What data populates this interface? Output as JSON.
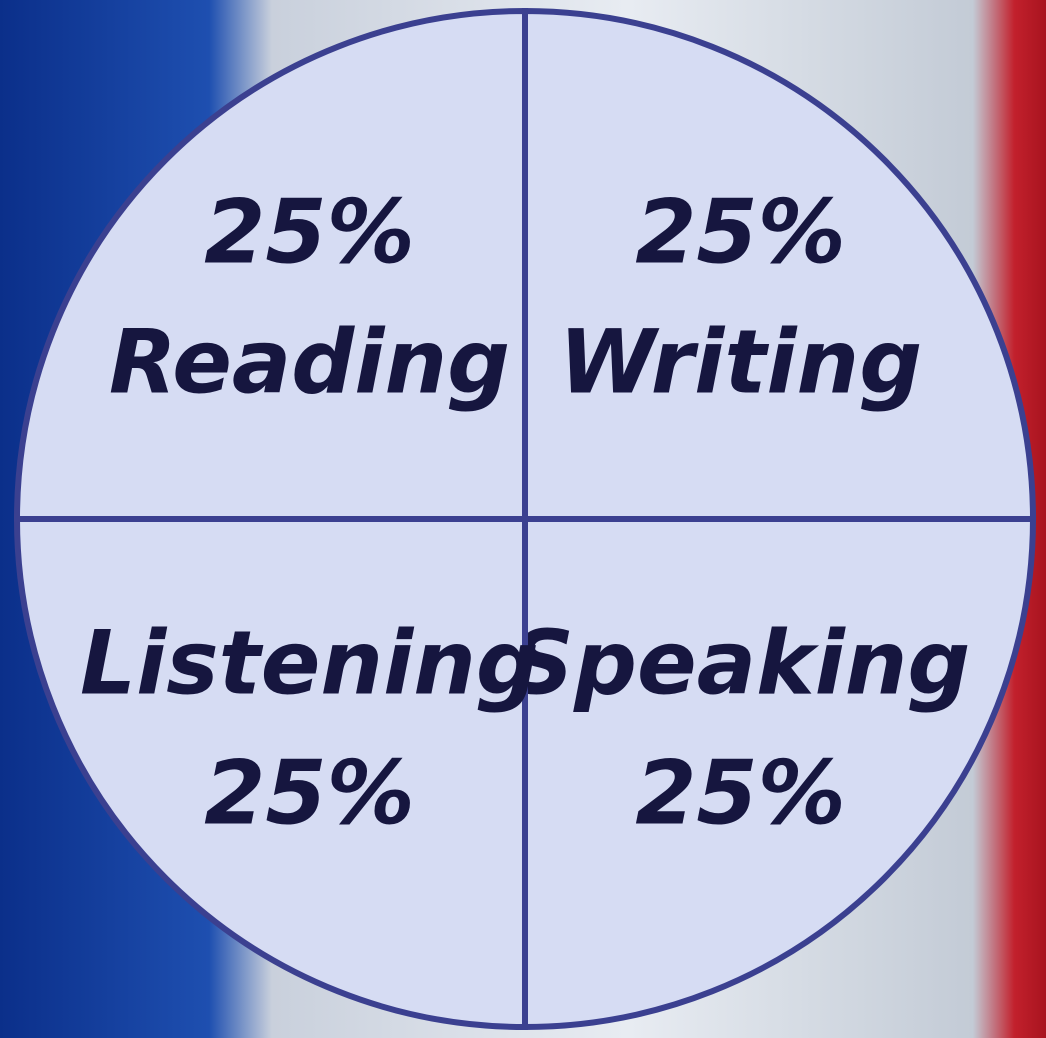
{
  "chart_data": {
    "type": "pie",
    "categories": [
      "Reading",
      "Writing",
      "Speaking",
      "Listening"
    ],
    "values": [
      25,
      25,
      25,
      25
    ],
    "value_labels": [
      "25%",
      "25%",
      "25%",
      "25%"
    ],
    "color": "#d6dcf3",
    "edge_color": "#3b4090",
    "label_color": "#16163f"
  }
}
